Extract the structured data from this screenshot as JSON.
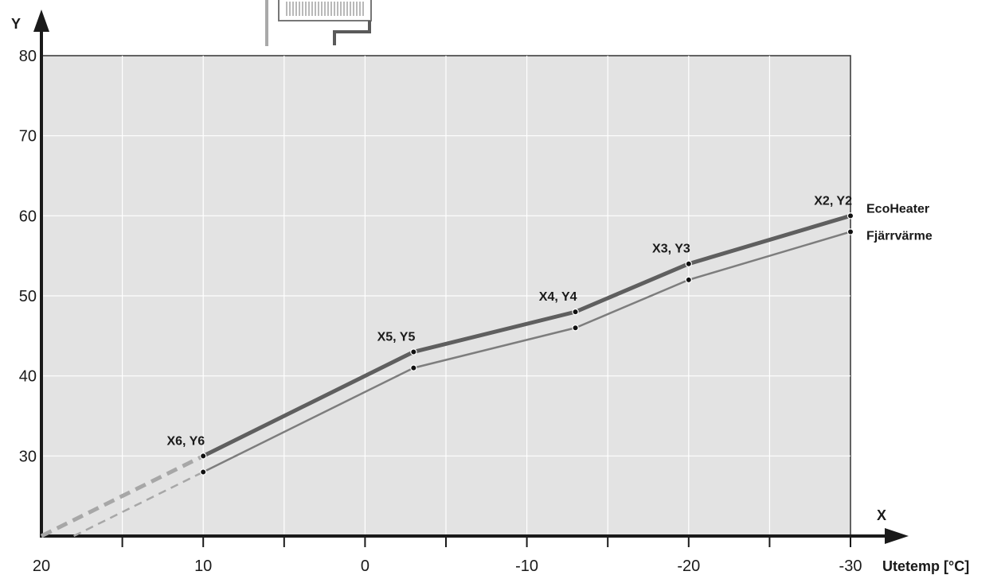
{
  "chart_data": {
    "type": "line",
    "xlabel": "Utetemp [°C]",
    "x_axis_letter": "X",
    "y_axis_letter": "Y",
    "xlim": [
      20,
      -30
    ],
    "ylim": [
      20,
      80
    ],
    "x_ticks": [
      20,
      10,
      0,
      -10,
      -20,
      -30
    ],
    "x_tick_labels": [
      "20",
      "10",
      "0",
      "-10",
      "-20",
      "-30"
    ],
    "y_ticks": [
      30,
      40,
      50,
      60,
      70,
      80
    ],
    "y_tick_labels": [
      "30",
      "40",
      "50",
      "60",
      "70",
      "80"
    ],
    "grid": true,
    "background_color": "#e3e3e3",
    "series": [
      {
        "name": "EcoHeater",
        "color": "#5f5f5f",
        "dashed_extension_color": "#a7a7a7",
        "x": [
          10,
          -3,
          -13,
          -20,
          -30
        ],
        "y": [
          30,
          43,
          48,
          54,
          60
        ],
        "dashed_extension": {
          "x": [
            20,
            10
          ],
          "y": [
            20,
            30
          ]
        }
      },
      {
        "name": "Fjärrvärme",
        "color": "#7d7d7d",
        "dashed_extension_color": "#a7a7a7",
        "x": [
          10,
          -3,
          -13,
          -20,
          -30
        ],
        "y": [
          28,
          41,
          46,
          52,
          58
        ],
        "dashed_extension": {
          "x": [
            18,
            10
          ],
          "y": [
            20,
            28
          ]
        }
      }
    ],
    "point_labels": [
      {
        "text": "X6, Y6",
        "x": 10,
        "y": 30
      },
      {
        "text": "X5, Y5",
        "x": -3,
        "y": 43
      },
      {
        "text": "X4, Y4",
        "x": -13,
        "y": 48
      },
      {
        "text": "X3, Y3",
        "x": -20,
        "y": 54
      },
      {
        "text": "X2, Y2",
        "x": -30,
        "y": 60
      }
    ]
  }
}
